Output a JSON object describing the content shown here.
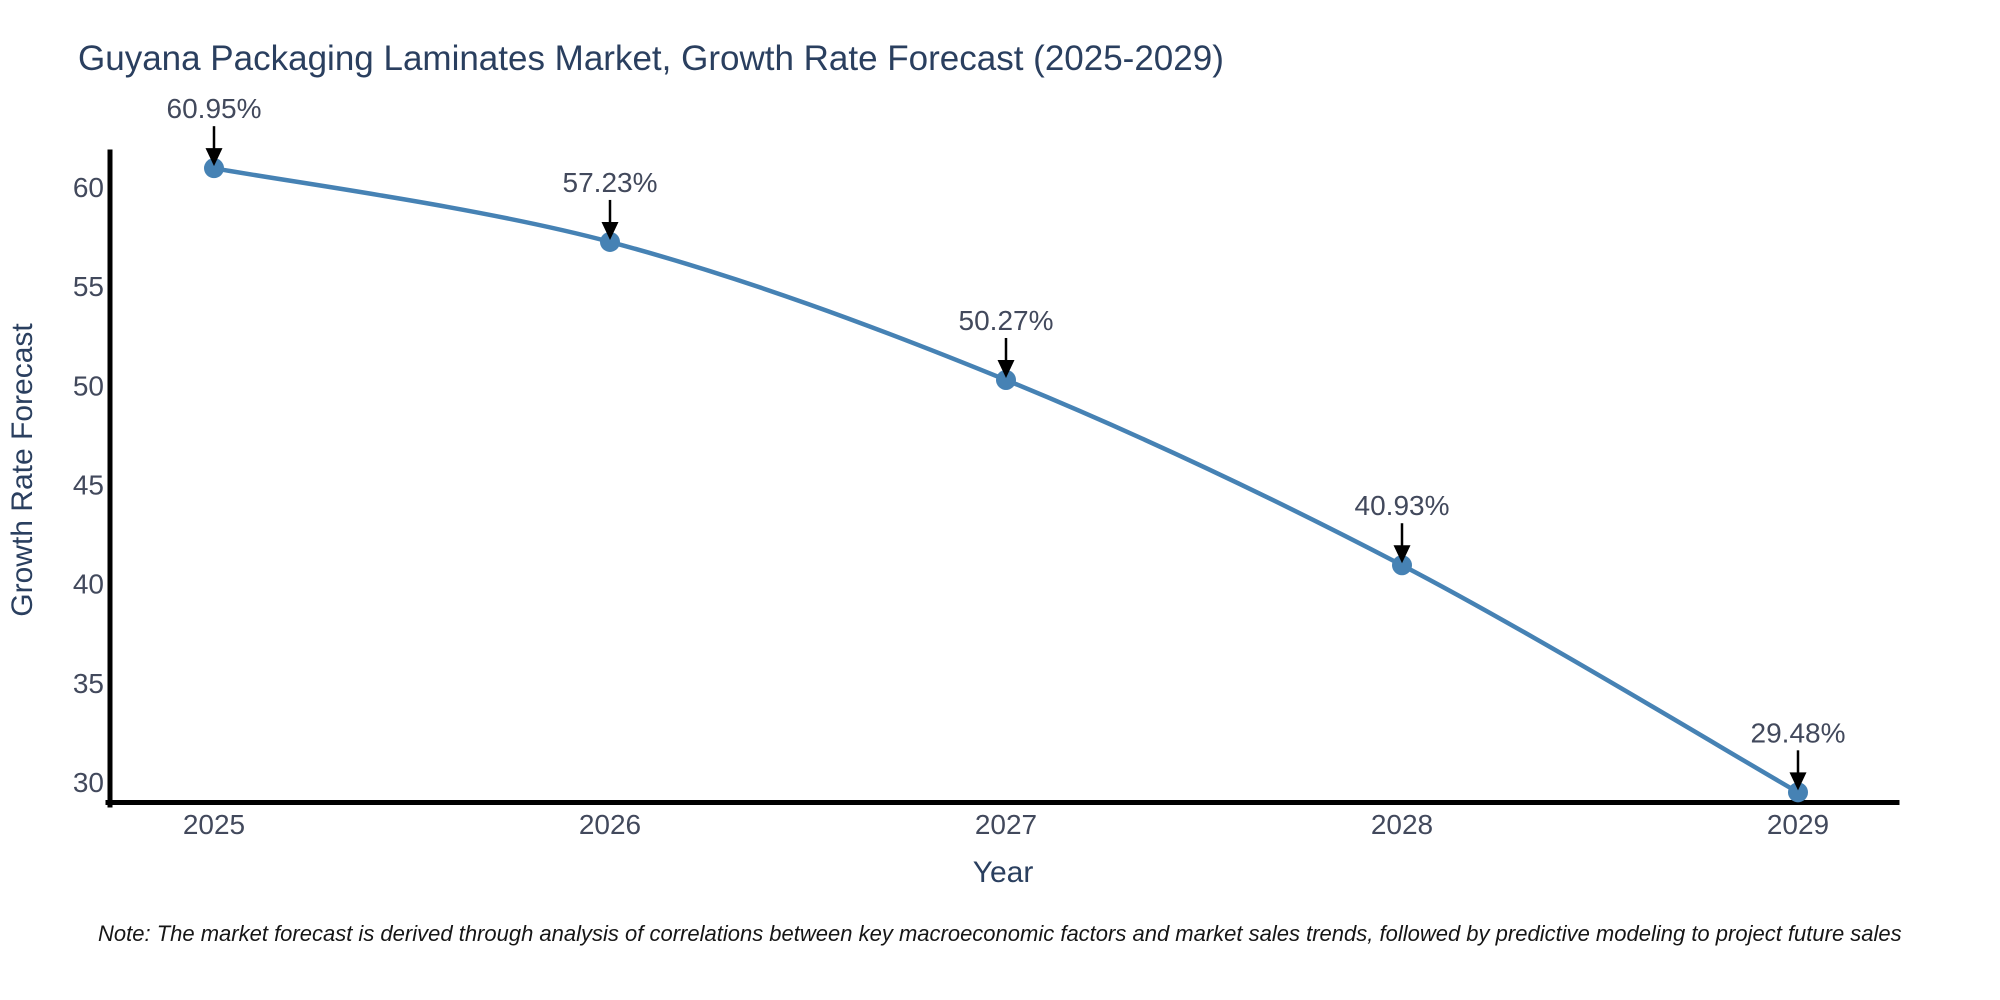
{
  "title": "Guyana Packaging Laminates Market, Growth Rate Forecast (2025-2029)",
  "note": "Note: The market forecast is derived through analysis of correlations between key macroeconomic factors and market sales trends, followed by predictive modeling to project future sales",
  "chart_data": {
    "type": "line",
    "line_shape": "spline",
    "x": [
      2025,
      2026,
      2027,
      2028,
      2029
    ],
    "values": [
      60.95,
      57.23,
      50.27,
      40.93,
      29.48
    ],
    "point_labels": [
      "60.95%",
      "57.23%",
      "50.27%",
      "40.93%",
      "29.48%"
    ],
    "xticks": [
      "2025",
      "2026",
      "2027",
      "2028",
      "2029"
    ],
    "yticks": [
      30,
      35,
      40,
      45,
      50,
      55,
      60
    ],
    "title": "Guyana Packaging Laminates Market, Growth Rate Forecast (2025-2029)",
    "xlabel": "Year",
    "ylabel": "Growth Rate Forecast",
    "xlim": [
      2024.74,
      2029.25
    ],
    "ylim": [
      28.84,
      61.76
    ],
    "grid": false,
    "legend": "none",
    "line_color": "#4682b4",
    "marker_color": "#4682b4",
    "marker_size": 10,
    "annotation_arrow_color": "#000000",
    "axis_color": "#000000"
  },
  "colors": {
    "title": "#2a3f5f",
    "tick_label": "#42495c",
    "axis_title": "#2a3f5f",
    "note": "#161616",
    "background": "#ffffff"
  }
}
